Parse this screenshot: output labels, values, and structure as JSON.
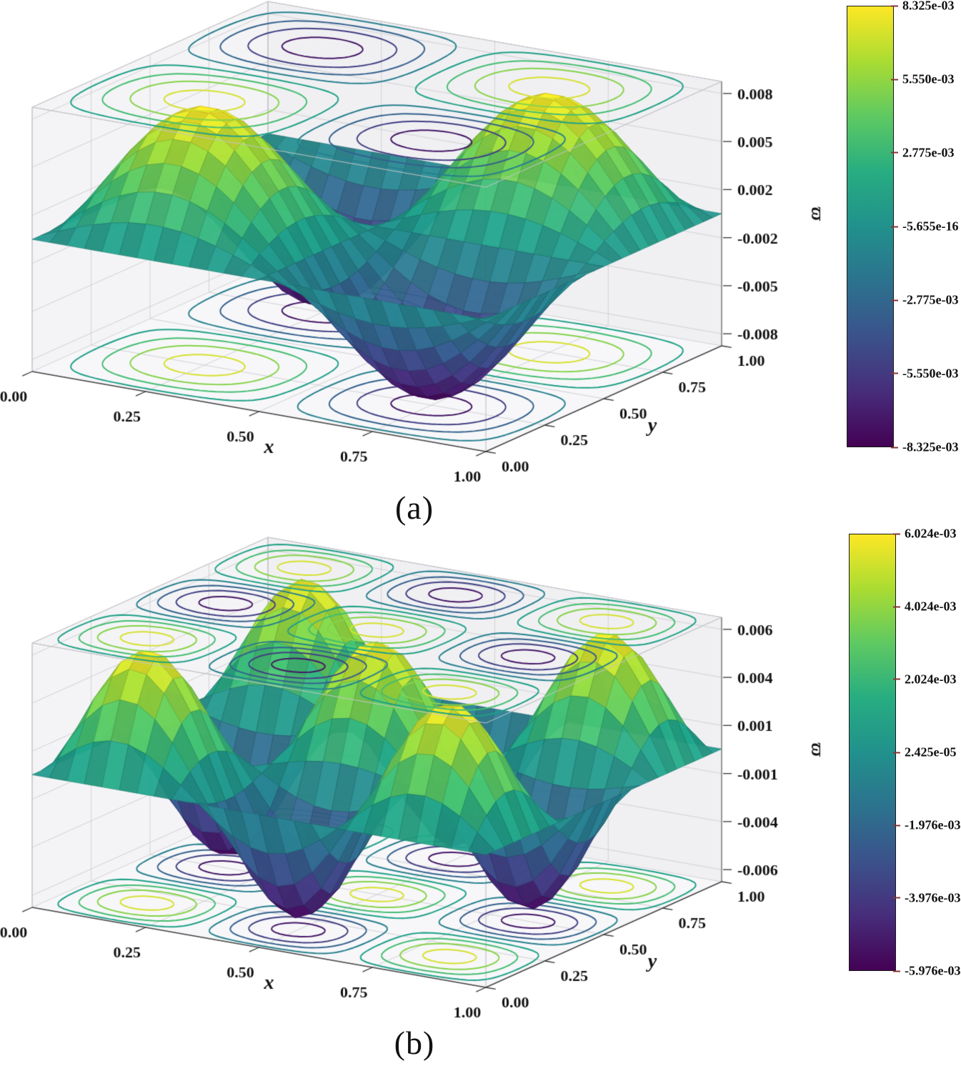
{
  "chart_data": [
    {
      "id": "a",
      "type": "3d_surface_with_contour_projections",
      "caption": "(a)",
      "colormap": "viridis",
      "axes": {
        "xlabel": "x",
        "ylabel": "y",
        "zlabel": "ϖ",
        "x_tick_labels": [
          "0.00",
          "0.25",
          "0.50",
          "0.75",
          "1.00"
        ],
        "y_tick_labels": [
          "0.00",
          "0.25",
          "0.50",
          "0.75",
          "1.00"
        ],
        "z_tick_labels": [
          "0.008",
          "0.005",
          "0.002",
          "-0.002",
          "-0.005",
          "-0.008"
        ],
        "z_tick_values": [
          0.008,
          0.0048,
          0.0016,
          -0.0016,
          -0.0048,
          -0.008
        ],
        "xlim": [
          0,
          1
        ],
        "ylim": [
          0,
          1
        ],
        "zlim": [
          -0.0088,
          0.0088
        ]
      },
      "surface": {
        "model": "w(x,y) = A*sin(mx*pi*x)*sin(my*pi*y) + c",
        "amplitude": 0.008325,
        "mode_x": 2,
        "mode_y": 2,
        "offset": 0
      },
      "contour_level_fractions": [
        -0.88,
        -0.63,
        -0.38,
        -0.13,
        0.13,
        0.38,
        0.63,
        0.88
      ],
      "colorbar": {
        "vmin": -0.008325,
        "vmax": 0.008325,
        "tick_labels": [
          "8.325e-03",
          "5.550e-03",
          "2.775e-03",
          "-5.655e-16",
          "-2.775e-03",
          "-5.550e-03",
          "-8.325e-03"
        ]
      }
    },
    {
      "id": "b",
      "type": "3d_surface_with_contour_projections",
      "caption": "(b)",
      "colormap": "viridis",
      "axes": {
        "xlabel": "x",
        "ylabel": "y",
        "zlabel": "ϖ",
        "x_tick_labels": [
          "0.00",
          "0.25",
          "0.50",
          "0.75",
          "1.00"
        ],
        "y_tick_labels": [
          "0.00",
          "0.25",
          "0.50",
          "0.75",
          "1.00"
        ],
        "z_tick_labels": [
          "0.006",
          "0.004",
          "0.001",
          "-0.001",
          "-0.004",
          "-0.006"
        ],
        "z_tick_values": [
          0.006,
          0.0036,
          0.0012,
          -0.0012,
          -0.0036,
          -0.006
        ],
        "xlim": [
          0,
          1
        ],
        "ylim": [
          0,
          1
        ],
        "zlim": [
          -0.0066,
          0.0066
        ]
      },
      "surface": {
        "model": "w(x,y) = A*sin(mx*pi*x)*sin(my*pi*y) + c",
        "amplitude": 0.006,
        "mode_x": 3,
        "mode_y": 3,
        "offset": 2.42e-05
      },
      "contour_level_fractions": [
        -0.88,
        -0.63,
        -0.38,
        -0.13,
        0.13,
        0.38,
        0.63,
        0.88
      ],
      "colorbar": {
        "vmin": -0.005976,
        "vmax": 0.006024,
        "tick_labels": [
          "6.024e-03",
          "4.024e-03",
          "2.024e-03",
          "2.425e-05",
          "-1.976e-03",
          "-3.976e-03",
          "-5.976e-03"
        ]
      }
    }
  ]
}
